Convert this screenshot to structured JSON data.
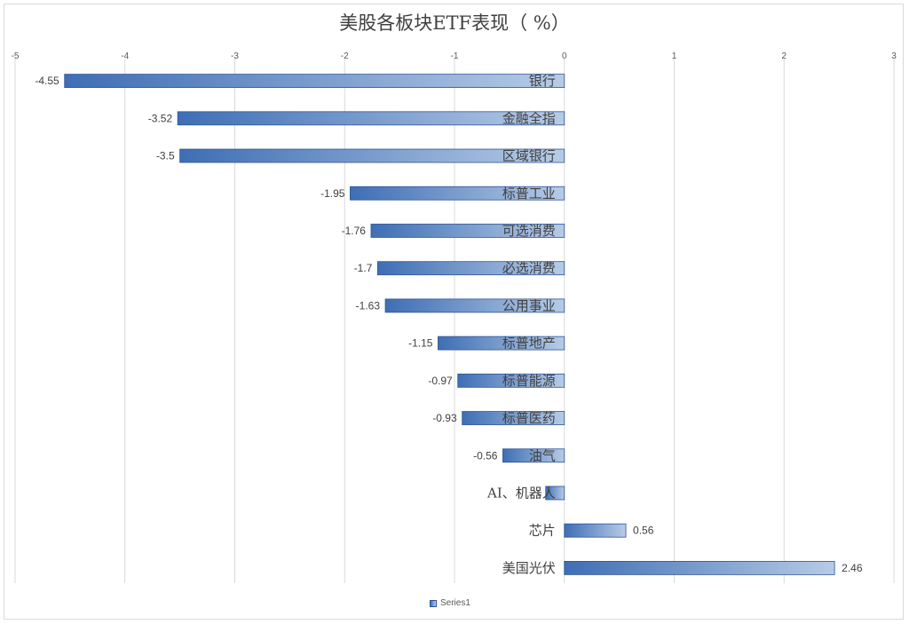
{
  "chart_data": {
    "type": "bar",
    "orientation": "horizontal",
    "title": "美股各板块ETF表现（ %）",
    "categories": [
      "银行",
      "金融全指",
      "区域银行",
      "标普工业",
      "可选消费",
      "必选消费",
      "公用事业",
      "标普地产",
      "标普能源",
      "标普医药",
      "油气",
      "AI、机器人",
      "芯片",
      "美国光伏"
    ],
    "series": [
      {
        "name": "Series1",
        "values": [
          -4.55,
          -3.52,
          -3.5,
          -1.95,
          -1.76,
          -1.7,
          -1.63,
          -1.15,
          -0.97,
          -0.93,
          -0.56,
          -0.17,
          0.56,
          2.46
        ],
        "data_labels": [
          "-4.55",
          "-3.52",
          "-3.5",
          "-1.95",
          "-1.76",
          "-1.7",
          "-1.63",
          "-1.15",
          "-0.97",
          "-0.93",
          "-0.56",
          "",
          "0.56",
          "2.46"
        ]
      }
    ],
    "xlim": [
      -5,
      3
    ],
    "xticks": [
      "-5",
      "-4",
      "-3",
      "-2",
      "-1",
      "0",
      "1",
      "2",
      "3"
    ],
    "grid": true,
    "legend_position": "bottom",
    "colors": {
      "bar_dark": "#3e6eb4",
      "bar_light": "#b6cbe6",
      "grid": "#d9d9d9"
    }
  }
}
